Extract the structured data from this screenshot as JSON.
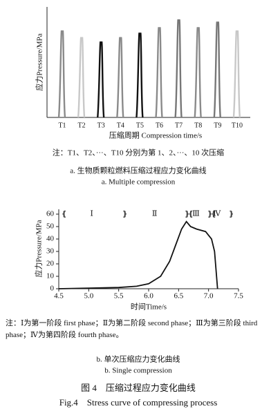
{
  "chart_data": [
    {
      "type": "peaks",
      "y_label": "应力Pressure/MPa",
      "x_label": "压缩周期 Compression time/s",
      "categories": [
        "T1",
        "T2",
        "T3",
        "T4",
        "T5",
        "T6",
        "T7",
        "T8",
        "T9",
        "T10"
      ],
      "values": [
        78,
        72,
        68,
        72,
        76,
        81,
        88,
        81,
        86,
        78
      ],
      "colors": [
        "#8a8a8a",
        "#c8c8c8",
        "#111111",
        "#8a8a8a",
        "#111111",
        "#8a8a8a",
        "#777777",
        "#8a8a8a",
        "#777777",
        "#c8c8c8"
      ],
      "ylim": [
        0,
        100
      ],
      "note": "注：T1、T2、···、T10 分别为第 1、2、···、10 次压缩",
      "caption_cn": "a. 生物质颗粒燃料压缩过程应力变化曲线",
      "caption_en": "a. Multiple compression"
    },
    {
      "type": "line",
      "y_label": "应力Pressure/MPa",
      "x_label": "时间Time/s",
      "x": [
        4.5,
        5.0,
        5.5,
        5.8,
        6.0,
        6.2,
        6.35,
        6.45,
        6.55,
        6.63,
        6.7,
        6.8,
        6.95,
        7.05,
        7.1,
        7.15
      ],
      "values": [
        0,
        0.5,
        1,
        2,
        4,
        10,
        22,
        35,
        48,
        54,
        50,
        48,
        46,
        40,
        30,
        0
      ],
      "color": "#111111",
      "xlim": [
        4.5,
        7.5
      ],
      "xticks": [
        4.5,
        {
          "value": 5.0,
          "label": "5.0"
        },
        5.5,
        {
          "value": 6.0,
          "label": "6.0"
        },
        6.5,
        {
          "value": 7.0,
          "label": "7.0"
        },
        7.5
      ],
      "ylim": [
        0,
        60
      ],
      "yticks": [
        0,
        10,
        20,
        30,
        40,
        50,
        60
      ],
      "phases": [
        {
          "label": "Ⅰ",
          "x": 5.05
        },
        {
          "label": "Ⅱ",
          "x": 6.1
        },
        {
          "label": "Ⅲ",
          "x": 6.79
        },
        {
          "label": "Ⅳ",
          "x": 7.14
        }
      ],
      "note": "注：Ⅰ为第一阶段 first phase；Ⅱ为第二阶段 second phase；Ⅲ为第三阶段 third phase；Ⅳ为第四阶段 fourth phase。",
      "caption_cn": "b. 单次压缩应力变化曲线",
      "caption_en": "b. Single compression"
    }
  ],
  "figure": {
    "title_cn": "图 4　压缩过程应力变化曲线",
    "title_en": "Fig.4　Stress curve of compressing process"
  }
}
